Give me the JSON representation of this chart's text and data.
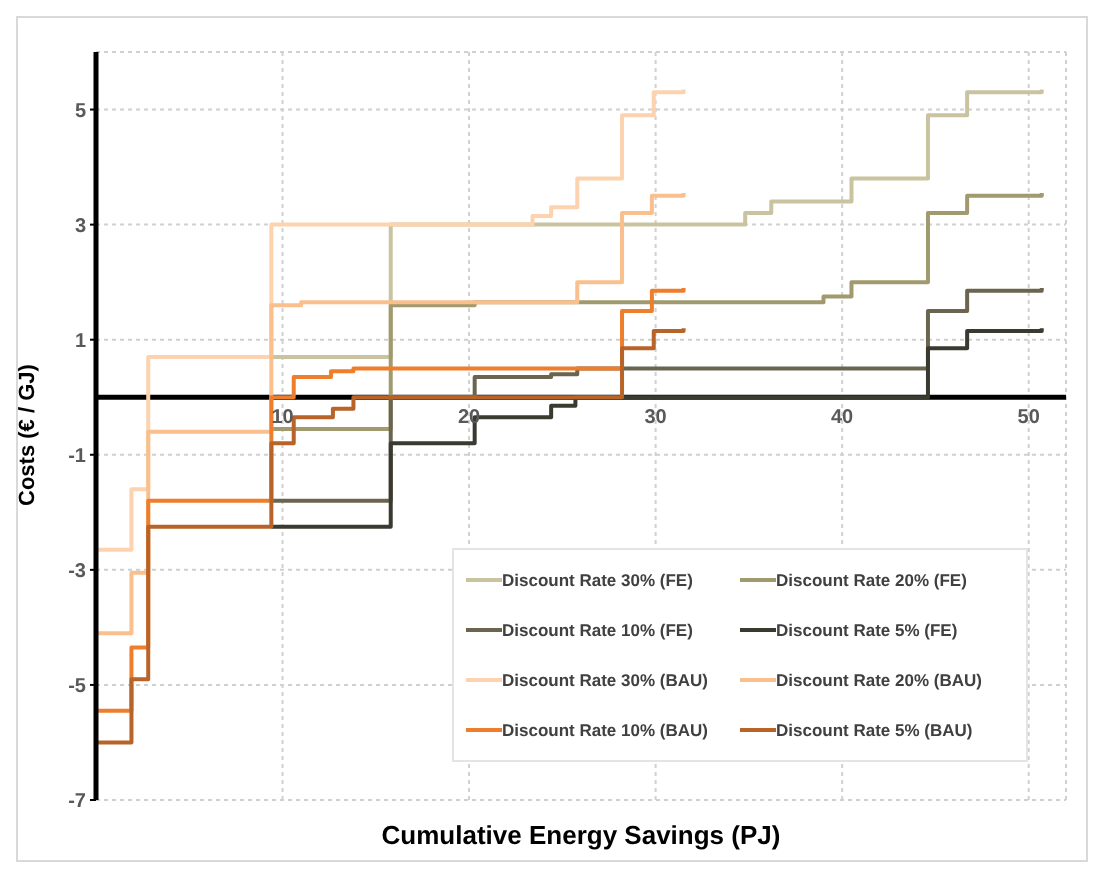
{
  "chart_data": {
    "type": "step",
    "xlabel": "Cumulative Energy Savings (PJ)",
    "ylabel": "Costs (€ / GJ)",
    "xlim": [
      0,
      52
    ],
    "ylim": [
      -7,
      6
    ],
    "xticks": [
      {
        "value": 0,
        "label": null
      },
      10,
      20,
      30,
      40,
      50
    ],
    "yticks": [
      -7,
      -5,
      -3,
      -1,
      1,
      3,
      5
    ],
    "grid": true,
    "legend": "bottom right",
    "marker": "none",
    "line_style": "solid",
    "series": [
      {
        "name": "Discount Rate 30% (FE)",
        "color": "#c9c3a0",
        "x": [
          9.4,
          15.8,
          34.8,
          36.2,
          40.5,
          44.6,
          46.7,
          50.7
        ],
        "values": [
          0.7,
          3.0,
          3.2,
          3.4,
          3.8,
          4.9,
          5.3,
          5.35
        ]
      },
      {
        "name": "Discount Rate 20% (FE)",
        "color": "#a09a6e",
        "x": [
          9.4,
          15.8,
          20.3,
          39,
          40.5,
          44.6,
          46.7,
          50.7
        ],
        "values": [
          -0.55,
          1.6,
          1.65,
          1.75,
          2.0,
          3.2,
          3.5,
          3.55
        ]
      },
      {
        "name": "Discount Rate 10% (FE)",
        "color": "#6b6550",
        "x": [
          9.4,
          15.8,
          20.3,
          24.4,
          25.8,
          44.6,
          46.7,
          50.7
        ],
        "values": [
          -1.8,
          0,
          0.35,
          0.4,
          0.5,
          1.5,
          1.85,
          1.9
        ]
      },
      {
        "name": "Discount Rate 5% (FE)",
        "color": "#3a3a30",
        "x": [
          9.4,
          15.8,
          20.3,
          24.4,
          25.7,
          44.6,
          46.7,
          50.7
        ],
        "values": [
          -2.25,
          -0.8,
          -0.35,
          -0.15,
          0,
          0.85,
          1.15,
          1.2
        ]
      },
      {
        "name": "Discount Rate 30% (BAU)",
        "color": "#fcd3ae",
        "x": [
          0,
          1.9,
          2.8,
          9.4,
          23.4,
          24.4,
          25.8,
          28.2,
          29.9,
          31.5
        ],
        "values": [
          -2.65,
          -1.6,
          0.7,
          3.0,
          3.15,
          3.3,
          3.8,
          4.9,
          5.3,
          5.35
        ]
      },
      {
        "name": "Discount Rate 20% (BAU)",
        "color": "#f9bf8c",
        "x": [
          0,
          1.9,
          2.8,
          9.4,
          11,
          25.8,
          28.2,
          29.8,
          31.5
        ],
        "values": [
          -4.1,
          -3.05,
          -0.6,
          1.6,
          1.65,
          2.0,
          3.2,
          3.5,
          3.55
        ]
      },
      {
        "name": "Discount Rate 10% (BAU)",
        "color": "#ee7d2c",
        "x": [
          0,
          1.9,
          2.8,
          9.4,
          10.6,
          12.6,
          13.8,
          28.2,
          29.8,
          31.5
        ],
        "values": [
          -5.45,
          -4.35,
          -1.8,
          0,
          0.35,
          0.45,
          0.5,
          1.5,
          1.85,
          1.9
        ]
      },
      {
        "name": "Discount Rate 5% (BAU)",
        "color": "#b86428",
        "x": [
          0,
          1.9,
          2.8,
          9.4,
          10.6,
          12.7,
          13.8,
          28.2,
          29.9,
          31.5
        ],
        "values": [
          -6.0,
          -4.9,
          -2.25,
          -0.8,
          -0.35,
          -0.2,
          0,
          0.85,
          1.15,
          1.2
        ]
      }
    ]
  }
}
